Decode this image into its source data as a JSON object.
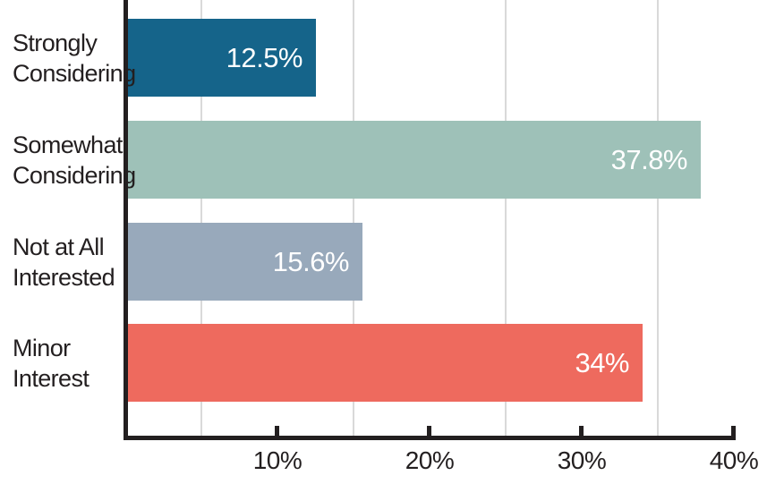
{
  "chart_data": {
    "type": "bar",
    "orientation": "horizontal",
    "categories": [
      "Strongly Considering",
      "Somewhat Considering",
      "Not at All Interested",
      "Minor Interest"
    ],
    "category_lines": [
      [
        "Strongly",
        "Considering"
      ],
      [
        "Somewhat",
        "Considering"
      ],
      [
        "Not at All",
        "Interested"
      ],
      [
        "Minor",
        "Interest"
      ]
    ],
    "values": [
      12.5,
      37.8,
      15.6,
      34
    ],
    "value_labels": [
      "12.5%",
      "37.8%",
      "15.6%",
      "34%"
    ],
    "bar_colors": [
      "#15648a",
      "#9ec1b8",
      "#98a9bb",
      "#ee6a5e"
    ],
    "xlabel": "",
    "ylabel": "",
    "xlim": [
      0,
      40
    ],
    "x_ticks": [
      {
        "value": 10,
        "label": "10%"
      },
      {
        "value": 20,
        "label": "20%"
      },
      {
        "value": 30,
        "label": "30%"
      },
      {
        "value": 40,
        "label": "40%"
      }
    ],
    "minor_gridline_values": [
      5,
      15,
      25,
      35
    ],
    "grid_on": true,
    "legend_position": "none",
    "colors": {
      "grid": "#d9d9d9",
      "axis": "#231f20",
      "tick_text": "#231f20",
      "category_text": "#231f20",
      "value_text": "#ffffff",
      "background": "#ffffff"
    }
  }
}
